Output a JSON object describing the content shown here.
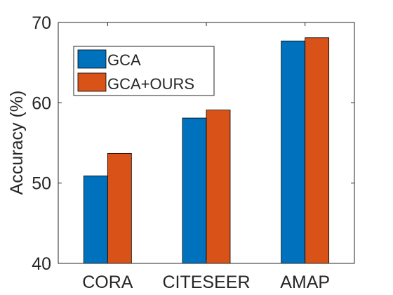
{
  "chart_data": {
    "type": "bar",
    "title": "",
    "xlabel": "",
    "ylabel": "Accuracy (%)",
    "ylim": [
      40,
      70
    ],
    "yticks": [
      40,
      50,
      60,
      70
    ],
    "grid": false,
    "legend_position": "top-left",
    "categories": [
      "CORA",
      "CITESEER",
      "AMAP"
    ],
    "series": [
      {
        "name": "GCA",
        "color": "#0072BD",
        "values": [
          50.9,
          58.1,
          67.7
        ]
      },
      {
        "name": "GCA+OURS",
        "color": "#D95319",
        "values": [
          53.7,
          59.1,
          68.1
        ]
      }
    ]
  }
}
